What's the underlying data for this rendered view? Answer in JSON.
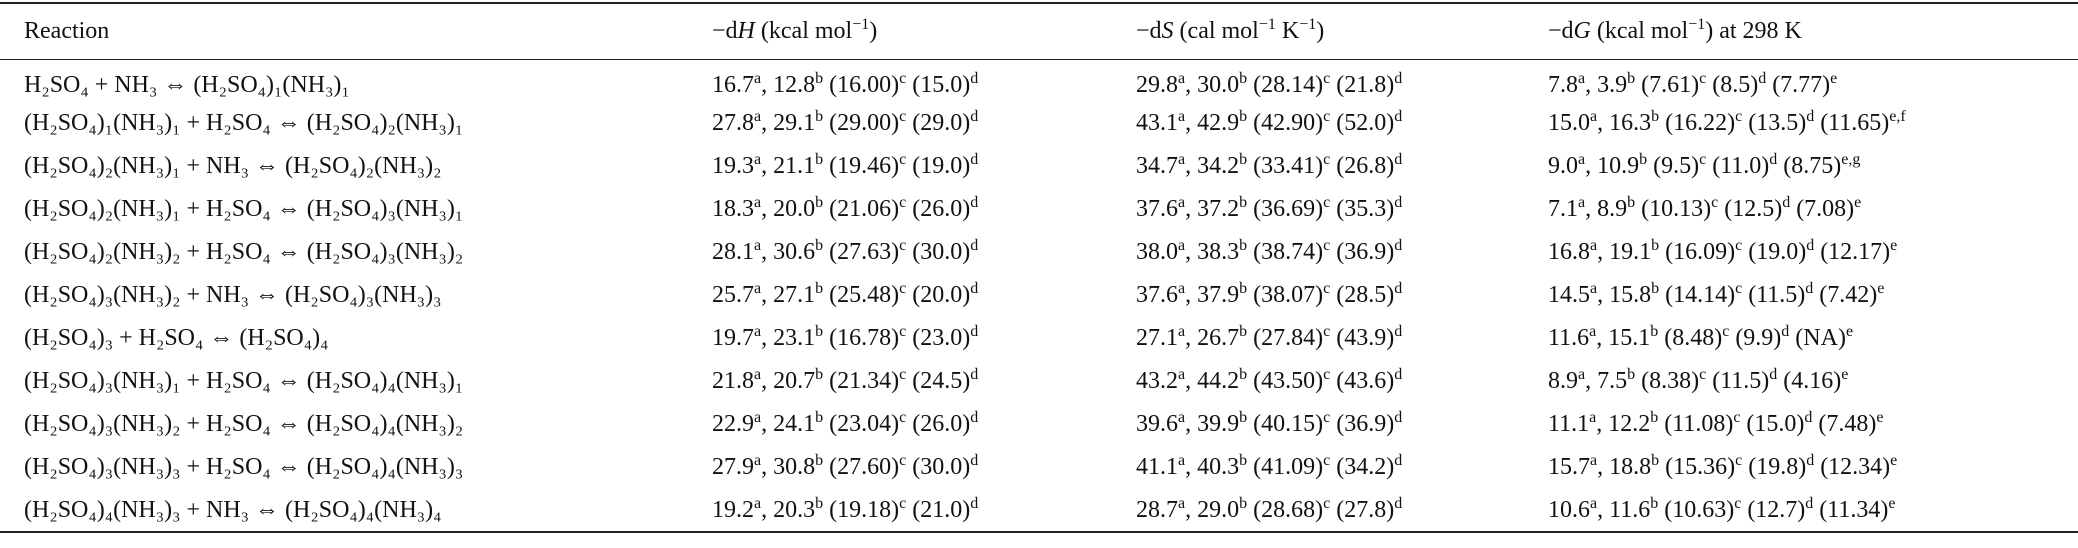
{
  "table": {
    "header": [
      [
        {
          "t": "Reaction"
        }
      ],
      [
        {
          "t": "−d"
        },
        {
          "t": "H",
          "f": "i"
        },
        {
          "t": " (kcal mol"
        },
        {
          "t": "−1",
          "f": "sup"
        },
        {
          "t": ")"
        }
      ],
      [
        {
          "t": "−d"
        },
        {
          "t": "S",
          "f": "i"
        },
        {
          "t": " (cal mol"
        },
        {
          "t": "−1",
          "f": "sup"
        },
        {
          "t": " K"
        },
        {
          "t": "−1",
          "f": "sup"
        },
        {
          "t": ")"
        }
      ],
      [
        {
          "t": "−d"
        },
        {
          "t": "G",
          "f": "i"
        },
        {
          "t": " (kcal mol"
        },
        {
          "t": "−1",
          "f": "sup"
        },
        {
          "t": ") at 298 K"
        }
      ]
    ],
    "rows": [
      [
        "H₂SO₄ + NH₃ ⇔ (H₂SO₄)₁(NH₃)₁",
        [
          "16.7",
          "a",
          ", 12.8",
          "b",
          " (16.00)",
          "c",
          " (15.0)",
          "d"
        ],
        [
          "29.8",
          "a",
          ", 30.0",
          "b",
          " (28.14)",
          "c",
          " (21.8)",
          "d"
        ],
        [
          "7.8",
          "a",
          ", 3.9",
          "b",
          " (7.61)",
          "c",
          " (8.5)",
          "d",
          " (7.77)",
          "e"
        ]
      ],
      [
        "(H₂SO₄)₁(NH₃)₁ + H₂SO₄ ⇔ (H₂SO₄)₂(NH₃)₁",
        [
          "27.8",
          "a",
          ", 29.1",
          "b",
          " (29.00)",
          "c",
          " (29.0)",
          "d"
        ],
        [
          "43.1",
          "a",
          ", 42.9",
          "b",
          " (42.90)",
          "c",
          " (52.0)",
          "d"
        ],
        [
          "15.0",
          "a",
          ", 16.3",
          "b",
          " (16.22)",
          "c",
          " (13.5)",
          "d",
          " (11.65)",
          "e,f"
        ]
      ],
      [
        "(H₂SO₄)₂(NH₃)₁ + NH₃ ⇔ (H₂SO₄)₂(NH₃)₂",
        [
          "19.3",
          "a",
          ", 21.1",
          "b",
          " (19.46)",
          "c",
          " (19.0)",
          "d"
        ],
        [
          "34.7",
          "a",
          ", 34.2",
          "b",
          " (33.41)",
          "c",
          " (26.8)",
          "d"
        ],
        [
          "9.0",
          "a",
          ", 10.9",
          "b",
          " (9.5)",
          "c",
          " (11.0)",
          "d",
          " (8.75)",
          "e,g"
        ]
      ],
      [
        "(H₂SO₄)₂(NH₃)₁ + H₂SO₄ ⇔ (H₂SO₄)₃(NH₃)₁",
        [
          "18.3",
          "a",
          ", 20.0",
          "b",
          " (21.06)",
          "c",
          " (26.0)",
          "d"
        ],
        [
          "37.6",
          "a",
          ", 37.2",
          "b",
          " (36.69)",
          "c",
          " (35.3)",
          "d"
        ],
        [
          "7.1",
          "a",
          ", 8.9",
          "b",
          " (10.13)",
          "c",
          " (12.5)",
          "d",
          " (7.08)",
          "e"
        ]
      ],
      [
        "(H₂SO₄)₂(NH₃)₂ + H₂SO₄ ⇔ (H₂SO₄)₃(NH₃)₂",
        [
          "28.1",
          "a",
          ", 30.6",
          "b",
          " (27.63)",
          "c",
          " (30.0)",
          "d"
        ],
        [
          "38.0",
          "a",
          ", 38.3",
          "b",
          " (38.74)",
          "c",
          " (36.9)",
          "d"
        ],
        [
          "16.8",
          "a",
          ", 19.1",
          "b",
          " (16.09)",
          "c",
          " (19.0)",
          "d",
          " (12.17)",
          "e"
        ]
      ],
      [
        "(H₂SO₄)₃(NH₃)₂ + NH₃ ⇔ (H₂SO₄)₃(NH₃)₃",
        [
          "25.7",
          "a",
          ", 27.1",
          "b",
          " (25.48)",
          "c",
          " (20.0)",
          "d"
        ],
        [
          "37.6",
          "a",
          ", 37.9",
          "b",
          " (38.07)",
          "c",
          " (28.5)",
          "d"
        ],
        [
          "14.5",
          "a",
          ", 15.8",
          "b",
          " (14.14)",
          "c",
          " (11.5)",
          "d",
          " (7.42)",
          "e"
        ]
      ],
      [
        "(H₂SO₄)₃ + H₂SO₄ ⇔ (H₂SO₄)₄",
        [
          "19.7",
          "a",
          ", 23.1",
          "b",
          " (16.78)",
          "c",
          " (23.0)",
          "d"
        ],
        [
          "27.1",
          "a",
          ", 26.7",
          "b",
          " (27.84)",
          "c",
          " (43.9)",
          "d"
        ],
        [
          "11.6",
          "a",
          ", 15.1",
          "b",
          " (8.48)",
          "c",
          " (9.9)",
          "d",
          " (NA)",
          "e"
        ]
      ],
      [
        "(H₂SO₄)₃(NH₃)₁ + H₂SO₄ ⇔ (H₂SO₄)₄(NH₃)₁",
        [
          "21.8",
          "a",
          ", 20.7",
          "b",
          " (21.34)",
          "c",
          " (24.5)",
          "d"
        ],
        [
          "43.2",
          "a",
          ", 44.2",
          "b",
          " (43.50)",
          "c",
          " (43.6)",
          "d"
        ],
        [
          "8.9",
          "a",
          ", 7.5",
          "b",
          " (8.38)",
          "c",
          " (11.5)",
          "d",
          " (4.16)",
          "e"
        ]
      ],
      [
        "(H₂SO₄)₃(NH₃)₂ + H₂SO₄ ⇔ (H₂SO₄)₄(NH₃)₂",
        [
          "22.9",
          "a",
          ", 24.1",
          "b",
          " (23.04)",
          "c",
          " (26.0)",
          "d"
        ],
        [
          "39.6",
          "a",
          ", 39.9",
          "b",
          " (40.15)",
          "c",
          " (36.9)",
          "d"
        ],
        [
          "11.1",
          "a",
          ", 12.2",
          "b",
          " (11.08)",
          "c",
          " (15.0)",
          "d",
          " (7.48)",
          "e"
        ]
      ],
      [
        "(H₂SO₄)₃(NH₃)₃ + H₂SO₄ ⇔ (H₂SO₄)₄(NH₃)₃",
        [
          "27.9",
          "a",
          ", 30.8",
          "b",
          " (27.60)",
          "c",
          " (30.0)",
          "d"
        ],
        [
          "41.1",
          "a",
          ", 40.3",
          "b",
          " (41.09)",
          "c",
          " (34.2)",
          "d"
        ],
        [
          "15.7",
          "a",
          ", 18.8",
          "b",
          " (15.36)",
          "c",
          " (19.8)",
          "d",
          " (12.34)",
          "e"
        ]
      ],
      [
        "(H₂SO₄)₄(NH₃)₃ + NH₃ ⇔ (H₂SO₄)₄(NH₃)₄",
        [
          "19.2",
          "a",
          ", 20.3",
          "b",
          " (19.18)",
          "c",
          " (21.0)",
          "d"
        ],
        [
          "28.7",
          "a",
          ", 29.0",
          "b",
          " (28.68)",
          "c",
          " (27.8)",
          "d"
        ],
        [
          "10.6",
          "a",
          ", 11.6",
          "b",
          " (10.63)",
          "c",
          " (12.7)",
          "d",
          " (11.34)",
          "e"
        ]
      ]
    ]
  }
}
